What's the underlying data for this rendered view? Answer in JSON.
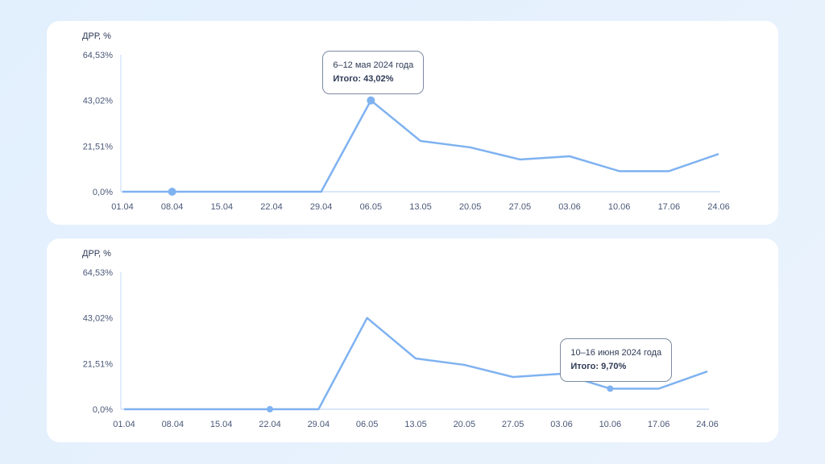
{
  "chart_data": [
    {
      "type": "line",
      "ylabel": "ДРР, %",
      "yticks": [
        "0,0%",
        "21,51%",
        "43,02%",
        "64,53%"
      ],
      "ylim": [
        0,
        64.53
      ],
      "categories": [
        "01.04",
        "08.04",
        "15.04",
        "22.04",
        "29.04",
        "06.05",
        "13.05",
        "20.05",
        "27.05",
        "03.06",
        "10.06",
        "17.06",
        "24.06"
      ],
      "values": [
        0,
        0,
        0,
        0,
        0,
        43.02,
        23.9,
        20.9,
        15.2,
        16.7,
        9.7,
        9.7,
        17.8
      ],
      "color": "#7fb2f0",
      "markers": [
        1,
        5
      ],
      "tooltip": {
        "index": 5,
        "period": "6–12 мая 2024 года",
        "total": "Итого: 43,02%"
      }
    },
    {
      "type": "line",
      "ylabel": "ДРР, %",
      "yticks": [
        "0,0%",
        "21,51%",
        "43,02%",
        "64,53%"
      ],
      "ylim": [
        0,
        64.53
      ],
      "categories": [
        "01.04",
        "08.04",
        "15.04",
        "22.04",
        "29.04",
        "06.05",
        "13.05",
        "20.05",
        "27.05",
        "03.06",
        "10.06",
        "17.06",
        "24.06"
      ],
      "values": [
        0,
        0,
        0,
        0,
        0,
        43.02,
        23.9,
        20.9,
        15.2,
        16.7,
        9.7,
        9.7,
        17.8
      ],
      "color": "#7fb2f0",
      "markers": [
        3,
        10
      ],
      "tooltip": {
        "index": 10,
        "period": "10–16 июня 2024 года",
        "total": "Итого: 9,70%"
      }
    }
  ]
}
